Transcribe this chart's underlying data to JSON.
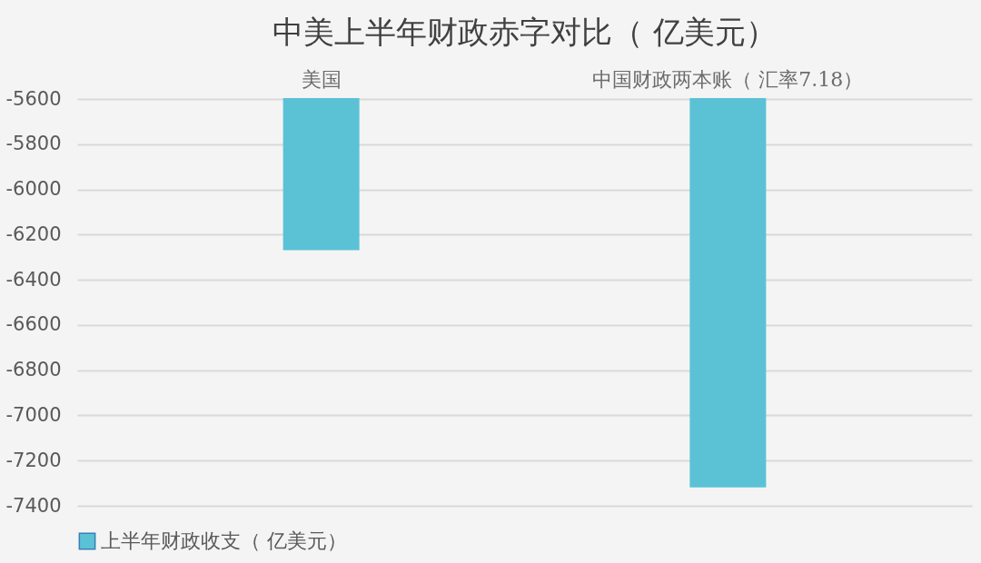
{
  "chart_data": {
    "type": "bar",
    "title": "中美上半年财政赤字对比（ 亿美元）",
    "categories": [
      "美国",
      "中国财政两本账（ 汇率7.18）"
    ],
    "series": [
      {
        "name": "上半年财政收支（ 亿美元）",
        "color": "#5bc2d6",
        "values": [
          -6265,
          -7315
        ]
      }
    ],
    "ylim": [
      -7400,
      -5600
    ],
    "yticks": [
      -7400,
      -7200,
      -7000,
      -6800,
      -6600,
      -6400,
      -6200,
      -6000,
      -5800,
      -5600
    ],
    "grid": "y",
    "legend": "bottom"
  }
}
